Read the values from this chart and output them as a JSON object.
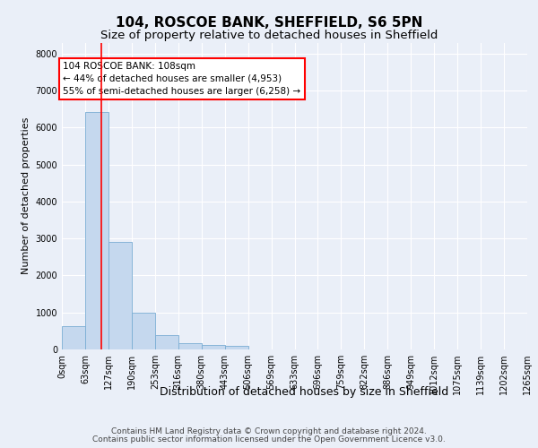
{
  "title_line1": "104, ROSCOE BANK, SHEFFIELD, S6 5PN",
  "title_line2": "Size of property relative to detached houses in Sheffield",
  "xlabel": "Distribution of detached houses by size in Sheffield",
  "ylabel": "Number of detached properties",
  "bin_labels": [
    "0sqm",
    "63sqm",
    "127sqm",
    "190sqm",
    "253sqm",
    "316sqm",
    "380sqm",
    "443sqm",
    "506sqm",
    "569sqm",
    "633sqm",
    "696sqm",
    "759sqm",
    "822sqm",
    "886sqm",
    "949sqm",
    "1012sqm",
    "1075sqm",
    "1139sqm",
    "1202sqm",
    "1265sqm"
  ],
  "bar_values": [
    620,
    6430,
    2920,
    1000,
    380,
    175,
    130,
    90,
    0,
    0,
    0,
    0,
    0,
    0,
    0,
    0,
    0,
    0,
    0,
    0
  ],
  "bar_color": "#c5d8ee",
  "bar_edge_color": "#7aadd4",
  "vline_color": "red",
  "vline_x": 1.71,
  "annotation_text": "104 ROSCOE BANK: 108sqm\n← 44% of detached houses are smaller (4,953)\n55% of semi-detached houses are larger (6,258) →",
  "annotation_box_facecolor": "white",
  "annotation_box_edgecolor": "red",
  "ylim_max": 8300,
  "yticks": [
    0,
    1000,
    2000,
    3000,
    4000,
    5000,
    6000,
    7000,
    8000
  ],
  "background_color": "#eaeff8",
  "grid_color": "white",
  "title_fontsize": 11,
  "subtitle_fontsize": 9.5,
  "ylabel_fontsize": 8,
  "xlabel_fontsize": 9,
  "tick_fontsize": 7,
  "annotation_fontsize": 7.5,
  "footer_fontsize": 6.5,
  "footer_line1": "Contains HM Land Registry data © Crown copyright and database right 2024.",
  "footer_line2": "Contains public sector information licensed under the Open Government Licence v3.0."
}
